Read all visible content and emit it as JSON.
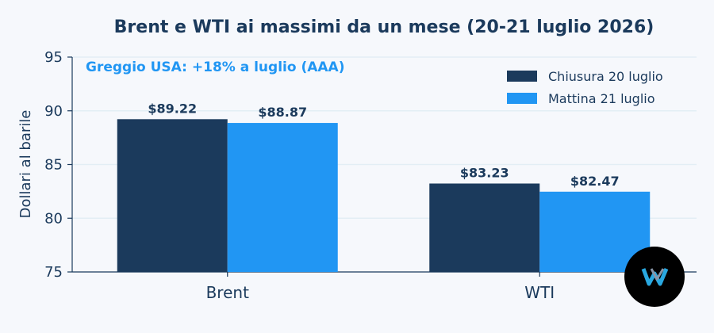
{
  "chart_data": {
    "type": "bar",
    "title": "Brent e WTI ai massimi da un mese (20-21 luglio 2026)",
    "annotation": "Greggio USA: +18% a luglio (AAA)",
    "ylabel": "Dollari al barile",
    "xlabel": "",
    "categories": [
      "Brent",
      "WTI"
    ],
    "ylim": [
      75,
      95
    ],
    "yticks": [
      75,
      80,
      85,
      90,
      95
    ],
    "grid": true,
    "legend_position": "top-right",
    "series": [
      {
        "name": "Chiusura 20 luglio",
        "values": [
          89.22,
          83.23
        ],
        "labels": [
          "$89.22",
          "$83.23"
        ],
        "color": "#1b3a5c"
      },
      {
        "name": "Mattina 21 luglio",
        "values": [
          88.87,
          82.47
        ],
        "labels": [
          "$88.87",
          "$82.47"
        ],
        "color": "#2196f3"
      }
    ]
  },
  "logo": {
    "name": "W",
    "background": "#000000",
    "accent": "#29a8e0"
  }
}
